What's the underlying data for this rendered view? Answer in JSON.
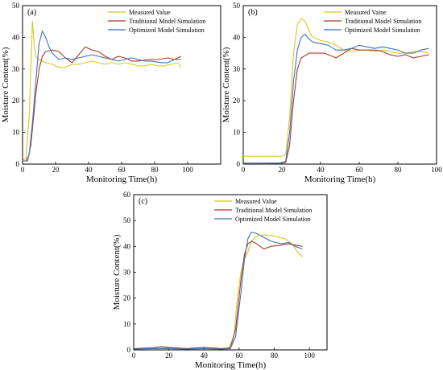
{
  "chart_data": [
    {
      "panel_label": "(a)",
      "type": "line",
      "xlabel": "Monitoring Time(h)",
      "ylabel": "Moisture Content(%)",
      "xlim": [
        0,
        120
      ],
      "ylim": [
        0,
        50
      ],
      "xticks": [
        0,
        20,
        40,
        60,
        80,
        100
      ],
      "yticks": [
        0,
        10,
        20,
        30,
        40,
        50
      ],
      "legend_position": "top-right",
      "series": [
        {
          "name": "Measured Value",
          "color": "#d8c81e",
          "points": [
            [
              0,
              1
            ],
            [
              2,
              2
            ],
            [
              4,
              15
            ],
            [
              6,
              45
            ],
            [
              7,
              38
            ],
            [
              8,
              34
            ],
            [
              10,
              33
            ],
            [
              14,
              32
            ],
            [
              18,
              31.5
            ],
            [
              22,
              30.5
            ],
            [
              26,
              30.5
            ],
            [
              30,
              31.5
            ],
            [
              34,
              31.5
            ],
            [
              38,
              32
            ],
            [
              42,
              32.5
            ],
            [
              46,
              32
            ],
            [
              50,
              31.5
            ],
            [
              54,
              32
            ],
            [
              58,
              31.5
            ],
            [
              62,
              32
            ],
            [
              66,
              31.5
            ],
            [
              70,
              31
            ],
            [
              74,
              31
            ],
            [
              78,
              31.5
            ],
            [
              82,
              31
            ],
            [
              86,
              31
            ],
            [
              90,
              31.5
            ],
            [
              94,
              32
            ],
            [
              96,
              30.5
            ]
          ]
        },
        {
          "name": "Traditional Model Simulation",
          "color": "#a83a2c",
          "points": [
            [
              0,
              1
            ],
            [
              3,
              1
            ],
            [
              5,
              6
            ],
            [
              8,
              22
            ],
            [
              10,
              30
            ],
            [
              12,
              34
            ],
            [
              14,
              35.5
            ],
            [
              18,
              36
            ],
            [
              22,
              35.5
            ],
            [
              26,
              33.5
            ],
            [
              30,
              32
            ],
            [
              34,
              34.5
            ],
            [
              38,
              37
            ],
            [
              42,
              36
            ],
            [
              46,
              35.5
            ],
            [
              50,
              34
            ],
            [
              54,
              33
            ],
            [
              58,
              34
            ],
            [
              62,
              33.5
            ],
            [
              66,
              32.5
            ],
            [
              70,
              32.5
            ],
            [
              76,
              33
            ],
            [
              82,
              33
            ],
            [
              88,
              33.5
            ],
            [
              92,
              33
            ],
            [
              96,
              34
            ]
          ]
        },
        {
          "name": "Optimized Model Simulation",
          "color": "#3b74b8",
          "points": [
            [
              0,
              1
            ],
            [
              2,
              1
            ],
            [
              4,
              3
            ],
            [
              6,
              13
            ],
            [
              8,
              26
            ],
            [
              10,
              38
            ],
            [
              12,
              42
            ],
            [
              14,
              40
            ],
            [
              16,
              37
            ],
            [
              18,
              35
            ],
            [
              22,
              33
            ],
            [
              26,
              33.5
            ],
            [
              30,
              33
            ],
            [
              34,
              33.5
            ],
            [
              38,
              34
            ],
            [
              42,
              34.5
            ],
            [
              46,
              34
            ],
            [
              50,
              33.5
            ],
            [
              54,
              33
            ],
            [
              58,
              32.5
            ],
            [
              62,
              33
            ],
            [
              66,
              33.5
            ],
            [
              70,
              33
            ],
            [
              74,
              32.5
            ],
            [
              78,
              32.5
            ],
            [
              84,
              32
            ],
            [
              88,
              32
            ],
            [
              92,
              33
            ],
            [
              96,
              33
            ]
          ]
        }
      ]
    },
    {
      "panel_label": "(b)",
      "type": "line",
      "xlabel": "Monitoring Time(h)",
      "ylabel": "Moisture Content(%)",
      "xlim": [
        0,
        100
      ],
      "ylim": [
        0,
        50
      ],
      "xticks": [
        0,
        20,
        40,
        60,
        80,
        100
      ],
      "yticks": [
        0,
        10,
        20,
        30,
        40,
        50
      ],
      "legend_position": "top-right",
      "series": [
        {
          "name": "Measured Vaine",
          "color": "#d8c81e",
          "points": [
            [
              0,
              2.5
            ],
            [
              10,
              2.5
            ],
            [
              20,
              2.5
            ],
            [
              22,
              3
            ],
            [
              24,
              15
            ],
            [
              26,
              35
            ],
            [
              28,
              44
            ],
            [
              30,
              46
            ],
            [
              32,
              45
            ],
            [
              34,
              42
            ],
            [
              36,
              40
            ],
            [
              40,
              39
            ],
            [
              44,
              38.5
            ],
            [
              48,
              37.5
            ],
            [
              52,
              36
            ],
            [
              56,
              35.5
            ],
            [
              60,
              36
            ],
            [
              64,
              36
            ],
            [
              68,
              35.5
            ],
            [
              72,
              36
            ],
            [
              76,
              35.5
            ],
            [
              80,
              35
            ],
            [
              84,
              35
            ],
            [
              88,
              35.5
            ],
            [
              92,
              35.5
            ],
            [
              96,
              35
            ]
          ]
        },
        {
          "name": "Traditional Model Simulation",
          "color": "#a83a2c",
          "points": [
            [
              0,
              0.3
            ],
            [
              10,
              0.3
            ],
            [
              20,
              0.3
            ],
            [
              22,
              0.5
            ],
            [
              24,
              6
            ],
            [
              26,
              20
            ],
            [
              28,
              30
            ],
            [
              30,
              33.5
            ],
            [
              34,
              35
            ],
            [
              38,
              35
            ],
            [
              42,
              35
            ],
            [
              46,
              34
            ],
            [
              48,
              33.5
            ],
            [
              52,
              35
            ],
            [
              56,
              36.5
            ],
            [
              60,
              36
            ],
            [
              64,
              36
            ],
            [
              68,
              36
            ],
            [
              72,
              35.5
            ],
            [
              76,
              34.5
            ],
            [
              80,
              34
            ],
            [
              84,
              34.5
            ],
            [
              88,
              33.5
            ],
            [
              92,
              34
            ],
            [
              96,
              34.5
            ]
          ]
        },
        {
          "name": "Optimized Model Simulation",
          "color": "#3b74b8",
          "points": [
            [
              0,
              0.2
            ],
            [
              10,
              0.2
            ],
            [
              20,
              0.3
            ],
            [
              22,
              1
            ],
            [
              24,
              10
            ],
            [
              26,
              26
            ],
            [
              28,
              36
            ],
            [
              30,
              40
            ],
            [
              32,
              41
            ],
            [
              34,
              39.5
            ],
            [
              36,
              38.5
            ],
            [
              40,
              38
            ],
            [
              44,
              37.5
            ],
            [
              48,
              36
            ],
            [
              52,
              36
            ],
            [
              56,
              36.5
            ],
            [
              60,
              37.5
            ],
            [
              64,
              37
            ],
            [
              68,
              36.5
            ],
            [
              72,
              37
            ],
            [
              76,
              36.5
            ],
            [
              80,
              36
            ],
            [
              84,
              35
            ],
            [
              88,
              35
            ],
            [
              92,
              36
            ],
            [
              96,
              36.5
            ]
          ]
        }
      ]
    },
    {
      "panel_label": "(c)",
      "type": "line",
      "xlabel": "Monitoring Time(h)",
      "ylabel": "Moisture Content(%)",
      "xlim": [
        0,
        110
      ],
      "ylim": [
        0,
        60
      ],
      "xticks": [
        0,
        20,
        40,
        60,
        80,
        100
      ],
      "yticks": [
        0,
        10,
        20,
        30,
        40,
        50,
        60
      ],
      "legend_position": "top-right",
      "series": [
        {
          "name": "Measured Value",
          "color": "#d8c81e",
          "points": [
            [
              0,
              0.5
            ],
            [
              10,
              0.5
            ],
            [
              20,
              0.8
            ],
            [
              30,
              0.5
            ],
            [
              40,
              0.5
            ],
            [
              50,
              0.5
            ],
            [
              54,
              0.8
            ],
            [
              57,
              5
            ],
            [
              59,
              20
            ],
            [
              61,
              30
            ],
            [
              63,
              35
            ],
            [
              65,
              38
            ],
            [
              67,
              42
            ],
            [
              70,
              44
            ],
            [
              74,
              44.5
            ],
            [
              80,
              44
            ],
            [
              86,
              43
            ],
            [
              90,
              41
            ],
            [
              93,
              38
            ],
            [
              96,
              36
            ]
          ]
        },
        {
          "name": "Traditional Model Simulation",
          "color": "#a83a2c",
          "points": [
            [
              0,
              0.5
            ],
            [
              10,
              0.8
            ],
            [
              16,
              1.2
            ],
            [
              20,
              1
            ],
            [
              30,
              0.5
            ],
            [
              40,
              1
            ],
            [
              50,
              0.5
            ],
            [
              55,
              0.8
            ],
            [
              58,
              8
            ],
            [
              61,
              27
            ],
            [
              63,
              37
            ],
            [
              65,
              41
            ],
            [
              67,
              42
            ],
            [
              70,
              41
            ],
            [
              74,
              39
            ],
            [
              78,
              40
            ],
            [
              84,
              40.5
            ],
            [
              88,
              41
            ],
            [
              92,
              40.5
            ],
            [
              96,
              40
            ]
          ]
        },
        {
          "name": "Optimized Model Simulation",
          "color": "#3b74b8",
          "points": [
            [
              0,
              0.3
            ],
            [
              10,
              0.5
            ],
            [
              20,
              0.5
            ],
            [
              30,
              0.3
            ],
            [
              40,
              0.5
            ],
            [
              50,
              0.3
            ],
            [
              55,
              0.5
            ],
            [
              58,
              5
            ],
            [
              61,
              22
            ],
            [
              63,
              35
            ],
            [
              65,
              43
            ],
            [
              67,
              45.5
            ],
            [
              70,
              45
            ],
            [
              74,
              43.5
            ],
            [
              78,
              42
            ],
            [
              84,
              41
            ],
            [
              88,
              41.5
            ],
            [
              92,
              40
            ],
            [
              96,
              39
            ]
          ]
        }
      ]
    }
  ]
}
